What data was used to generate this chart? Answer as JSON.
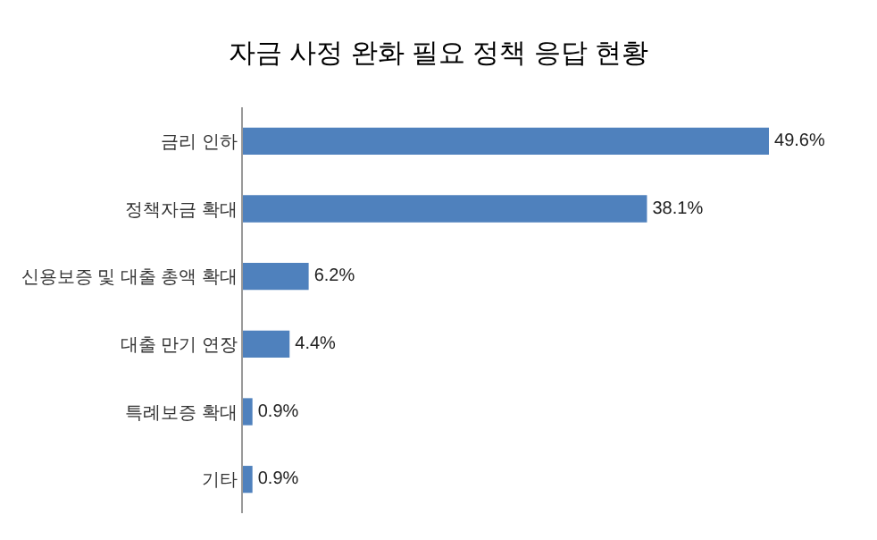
{
  "chart_data": {
    "type": "bar",
    "orientation": "horizontal",
    "title": "자금 사정 완화 필요 정책 응답 현황",
    "categories": [
      "금리 인하",
      "정책자금 확대",
      "신용보증 및 대출 총액 확대",
      "대출 만기 연장",
      "특례보증 확대",
      "기타"
    ],
    "values": [
      49.6,
      38.1,
      6.2,
      4.4,
      0.9,
      0.9
    ],
    "value_labels": [
      "49.6%",
      "38.1%",
      "6.2%",
      "4.4%",
      "0.9%",
      "0.9%"
    ],
    "color": "#4f81bd",
    "grid": false,
    "tick_labels": "y"
  }
}
